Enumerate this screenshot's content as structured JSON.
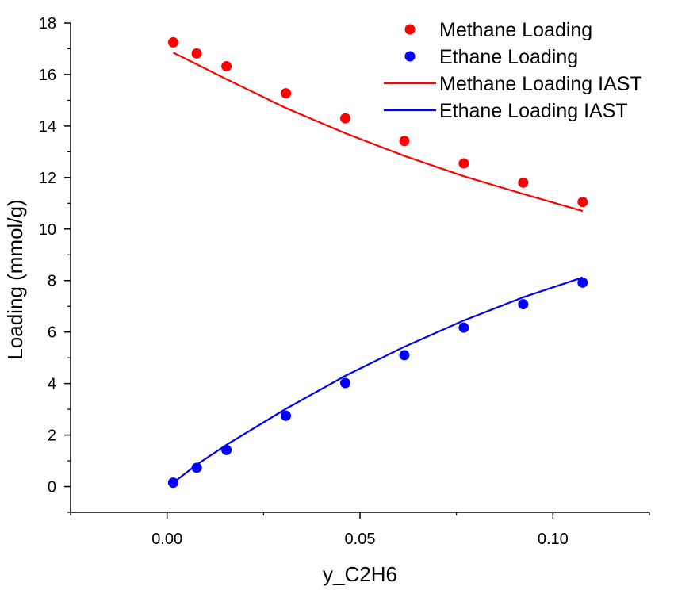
{
  "chart_data": {
    "type": "scatter",
    "title": "",
    "xlabel": "y_C2H6",
    "ylabel": "Loading (mmol/g)",
    "xlim": [
      -0.025,
      0.125
    ],
    "ylim": [
      -1,
      18
    ],
    "xticks": [
      0.0,
      0.05,
      0.1
    ],
    "xtick_labels": [
      "0.00",
      "0.05",
      "0.10"
    ],
    "yticks": [
      0,
      2,
      4,
      6,
      8,
      10,
      12,
      14,
      16,
      18
    ],
    "ytick_labels": [
      "0",
      "2",
      "4",
      "6",
      "8",
      "10",
      "12",
      "14",
      "16",
      "18"
    ],
    "grid": false,
    "legend_position": "top-right",
    "series": [
      {
        "name": "Methane Loading",
        "kind": "scatter",
        "color": "#ff0000",
        "x": [
          0.0016,
          0.0077,
          0.0154,
          0.0308,
          0.0462,
          0.0615,
          0.0769,
          0.0923,
          0.1077
        ],
        "y": [
          17.25,
          16.82,
          16.32,
          15.27,
          14.3,
          13.42,
          12.55,
          11.8,
          11.05
        ]
      },
      {
        "name": "Ethane Loading",
        "kind": "scatter",
        "color": "#0000ff",
        "x": [
          0.0016,
          0.0077,
          0.0154,
          0.0308,
          0.0462,
          0.0615,
          0.0769,
          0.0923,
          0.1077
        ],
        "y": [
          0.15,
          0.73,
          1.42,
          2.75,
          4.02,
          5.1,
          6.17,
          7.08,
          7.92
        ]
      },
      {
        "name": "Methane Loading IAST",
        "kind": "line",
        "color": "#ff0000",
        "x": [
          0.0016,
          0.0077,
          0.0154,
          0.0308,
          0.0462,
          0.0615,
          0.0769,
          0.0923,
          0.1077
        ],
        "y": [
          16.85,
          16.4,
          15.82,
          14.7,
          13.72,
          12.84,
          12.05,
          11.36,
          10.7
        ]
      },
      {
        "name": "Ethane Loading IAST",
        "kind": "line",
        "color": "#0000ff",
        "x": [
          0.0016,
          0.0077,
          0.0154,
          0.0308,
          0.0462,
          0.0615,
          0.0769,
          0.0923,
          0.1077
        ],
        "y": [
          0.15,
          0.85,
          1.62,
          3.02,
          4.3,
          5.43,
          6.45,
          7.35,
          8.12
        ]
      }
    ]
  }
}
